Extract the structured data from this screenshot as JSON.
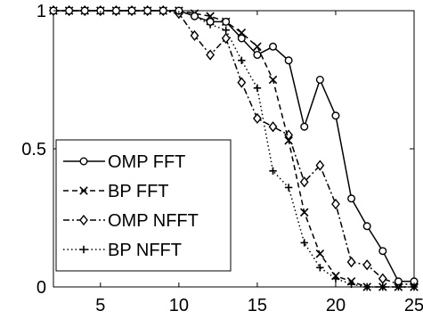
{
  "chart_data": {
    "type": "line",
    "title": "",
    "xlabel": "",
    "ylabel": "",
    "xlim": [
      2,
      25
    ],
    "ylim": [
      0,
      1
    ],
    "grid": false,
    "legend_position": "lower-left",
    "x_ticks": [
      {
        "value": 5,
        "label": "5"
      },
      {
        "value": 10,
        "label": "10"
      },
      {
        "value": 15,
        "label": "15"
      },
      {
        "value": 20,
        "label": "20"
      },
      {
        "value": 25,
        "label": "25"
      }
    ],
    "y_ticks": [
      {
        "value": 0,
        "label": "0"
      },
      {
        "value": 0.5,
        "label": "0.5"
      },
      {
        "value": 1,
        "label": "1"
      }
    ],
    "series": [
      {
        "name": "OMP FFT",
        "line_style": "solid",
        "marker": "circle",
        "x": [
          2,
          3,
          4,
          5,
          6,
          7,
          8,
          9,
          10,
          11,
          12,
          13,
          14,
          15,
          16,
          17,
          18,
          19,
          20,
          21,
          22,
          23,
          24,
          25
        ],
        "y": [
          1,
          1,
          1,
          1,
          1,
          1,
          1,
          1,
          1,
          0.98,
          0.96,
          0.96,
          0.9,
          0.84,
          0.87,
          0.82,
          0.58,
          0.75,
          0.62,
          0.32,
          0.22,
          0.13,
          0.02,
          0.02
        ]
      },
      {
        "name": "BP FFT",
        "line_style": "dashed",
        "marker": "x",
        "x": [
          2,
          3,
          4,
          5,
          6,
          7,
          8,
          9,
          10,
          11,
          12,
          13,
          14,
          15,
          16,
          17,
          18,
          19,
          20,
          21,
          22,
          23,
          24,
          25
        ],
        "y": [
          1,
          1,
          1,
          1,
          1,
          1,
          1,
          1,
          1,
          0.99,
          0.98,
          0.96,
          0.92,
          0.87,
          0.75,
          0.53,
          0.27,
          0.12,
          0.04,
          0.02,
          0,
          0,
          0,
          0
        ]
      },
      {
        "name": "OMP NFFT",
        "line_style": "dashdot",
        "marker": "diamond",
        "x": [
          2,
          3,
          4,
          5,
          6,
          7,
          8,
          9,
          10,
          11,
          12,
          13,
          14,
          15,
          16,
          17,
          18,
          19,
          20,
          21,
          22,
          23,
          24,
          25
        ],
        "y": [
          1,
          1,
          1,
          1,
          1,
          1,
          1,
          1,
          0.99,
          0.91,
          0.84,
          0.9,
          0.74,
          0.61,
          0.58,
          0.55,
          0.38,
          0.44,
          0.3,
          0.09,
          0.08,
          0.03,
          0.01,
          0.01
        ]
      },
      {
        "name": "BP NFFT",
        "line_style": "dotted",
        "marker": "plus",
        "x": [
          2,
          3,
          4,
          5,
          6,
          7,
          8,
          9,
          10,
          11,
          12,
          13,
          14,
          15,
          16,
          17,
          18,
          19,
          20,
          21,
          22,
          23,
          24,
          25
        ],
        "y": [
          1,
          1,
          1,
          1,
          1,
          1,
          1,
          1,
          1,
          0.98,
          0.95,
          0.93,
          0.82,
          0.72,
          0.42,
          0.36,
          0.16,
          0.07,
          0.03,
          0.01,
          0,
          0,
          0,
          0
        ]
      }
    ]
  }
}
